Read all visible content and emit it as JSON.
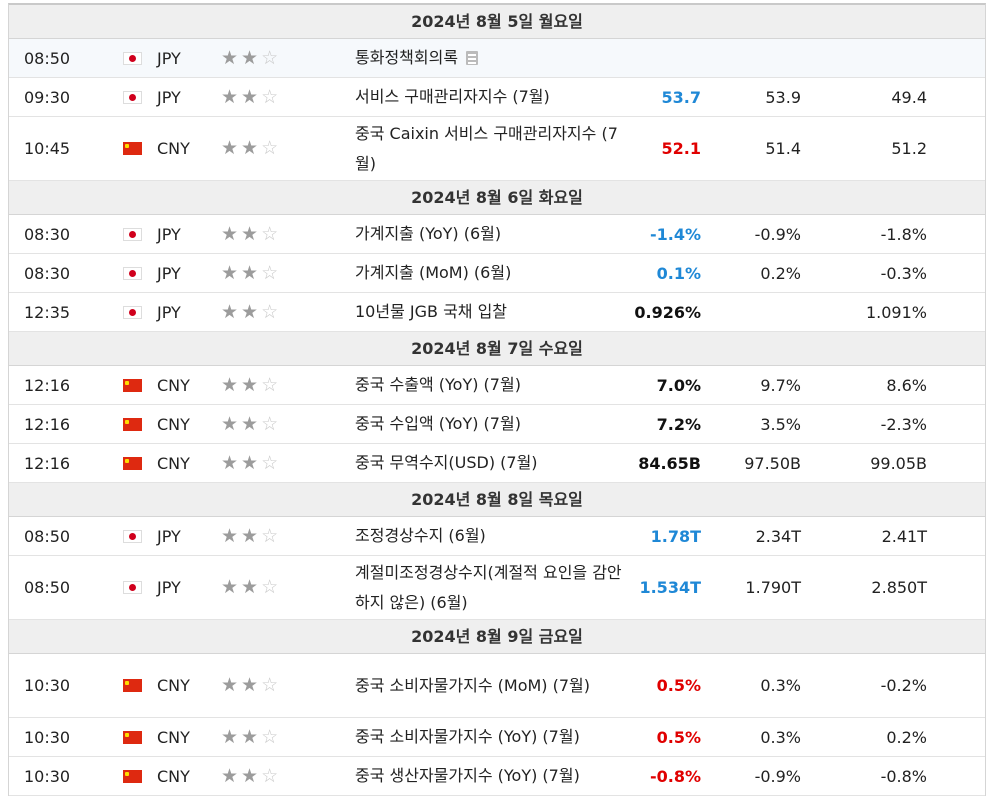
{
  "days": [
    {
      "label": "2024년 8월 5일 월요일",
      "events": [
        {
          "time": "08:50",
          "flag": "jp",
          "currency": "JPY",
          "stars": 2,
          "event": "통화정책회의록",
          "doc_icon": true,
          "actual": "",
          "actual_color": "",
          "forecast": "",
          "previous": ""
        },
        {
          "time": "09:30",
          "flag": "jp",
          "currency": "JPY",
          "stars": 2,
          "event": "서비스 구매관리자지수 (7월)",
          "actual": "53.7",
          "actual_color": "blue",
          "forecast": "53.9",
          "previous": "49.4"
        },
        {
          "time": "10:45",
          "flag": "cn",
          "currency": "CNY",
          "stars": 2,
          "event": "중국 Caixin 서비스 구매관리자지수 (7월)",
          "actual": "52.1",
          "actual_color": "red",
          "forecast": "51.4",
          "previous": "51.2"
        }
      ]
    },
    {
      "label": "2024년 8월 6일 화요일",
      "events": [
        {
          "time": "08:30",
          "flag": "jp",
          "currency": "JPY",
          "stars": 2,
          "event": "가계지출 (YoY) (6월)",
          "actual": "-1.4%",
          "actual_color": "blue",
          "forecast": "-0.9%",
          "previous": "-1.8%"
        },
        {
          "time": "08:30",
          "flag": "jp",
          "currency": "JPY",
          "stars": 2,
          "event": "가계지출 (MoM) (6월)",
          "actual": "0.1%",
          "actual_color": "blue",
          "forecast": "0.2%",
          "previous": "-0.3%"
        },
        {
          "time": "12:35",
          "flag": "jp",
          "currency": "JPY",
          "stars": 2,
          "event": "10년물 JGB 국채 입찰",
          "actual": "0.926%",
          "actual_color": "black",
          "forecast": "",
          "previous": "1.091%"
        }
      ]
    },
    {
      "label": "2024년 8월 7일 수요일",
      "events": [
        {
          "time": "12:16",
          "flag": "cn",
          "currency": "CNY",
          "stars": 2,
          "event": "중국 수출액 (YoY) (7월)",
          "actual": "7.0%",
          "actual_color": "black",
          "forecast": "9.7%",
          "previous": "8.6%"
        },
        {
          "time": "12:16",
          "flag": "cn",
          "currency": "CNY",
          "stars": 2,
          "event": "중국 수입액 (YoY) (7월)",
          "actual": "7.2%",
          "actual_color": "black",
          "forecast": "3.5%",
          "previous": "-2.3%"
        },
        {
          "time": "12:16",
          "flag": "cn",
          "currency": "CNY",
          "stars": 2,
          "event": "중국 무역수지(USD) (7월)",
          "actual": "84.65B",
          "actual_color": "black",
          "forecast": "97.50B",
          "previous": "99.05B"
        }
      ]
    },
    {
      "label": "2024년 8월 8일 목요일",
      "events": [
        {
          "time": "08:50",
          "flag": "jp",
          "currency": "JPY",
          "stars": 2,
          "event": "조정경상수지 (6월)",
          "actual": "1.78T",
          "actual_color": "blue",
          "forecast": "2.34T",
          "previous": "2.41T"
        },
        {
          "time": "08:50",
          "flag": "jp",
          "currency": "JPY",
          "stars": 2,
          "event": "계절미조정경상수지(계절적 요인을 감안하지 않은) (6월)",
          "actual": "1.534T",
          "actual_color": "blue",
          "forecast": "1.790T",
          "previous": "2.850T"
        }
      ]
    },
    {
      "label": "2024년 8월 9일 금요일",
      "events": [
        {
          "time": "10:30",
          "flag": "cn",
          "currency": "CNY",
          "stars": 2,
          "event": "중국 소비자물가지수 (MoM) (7월)",
          "actual": "0.5%",
          "actual_color": "red",
          "forecast": "0.3%",
          "previous": "-0.2%"
        },
        {
          "time": "10:30",
          "flag": "cn",
          "currency": "CNY",
          "stars": 2,
          "event": "중국 소비자물가지수 (YoY) (7월)",
          "actual": "0.5%",
          "actual_color": "red",
          "forecast": "0.3%",
          "previous": "0.2%"
        },
        {
          "time": "10:30",
          "flag": "cn",
          "currency": "CNY",
          "stars": 2,
          "event": "중국 생산자물가지수 (YoY) (7월)",
          "actual": "-0.8%",
          "actual_color": "red",
          "forecast": "-0.9%",
          "previous": "-0.8%"
        }
      ]
    }
  ]
}
